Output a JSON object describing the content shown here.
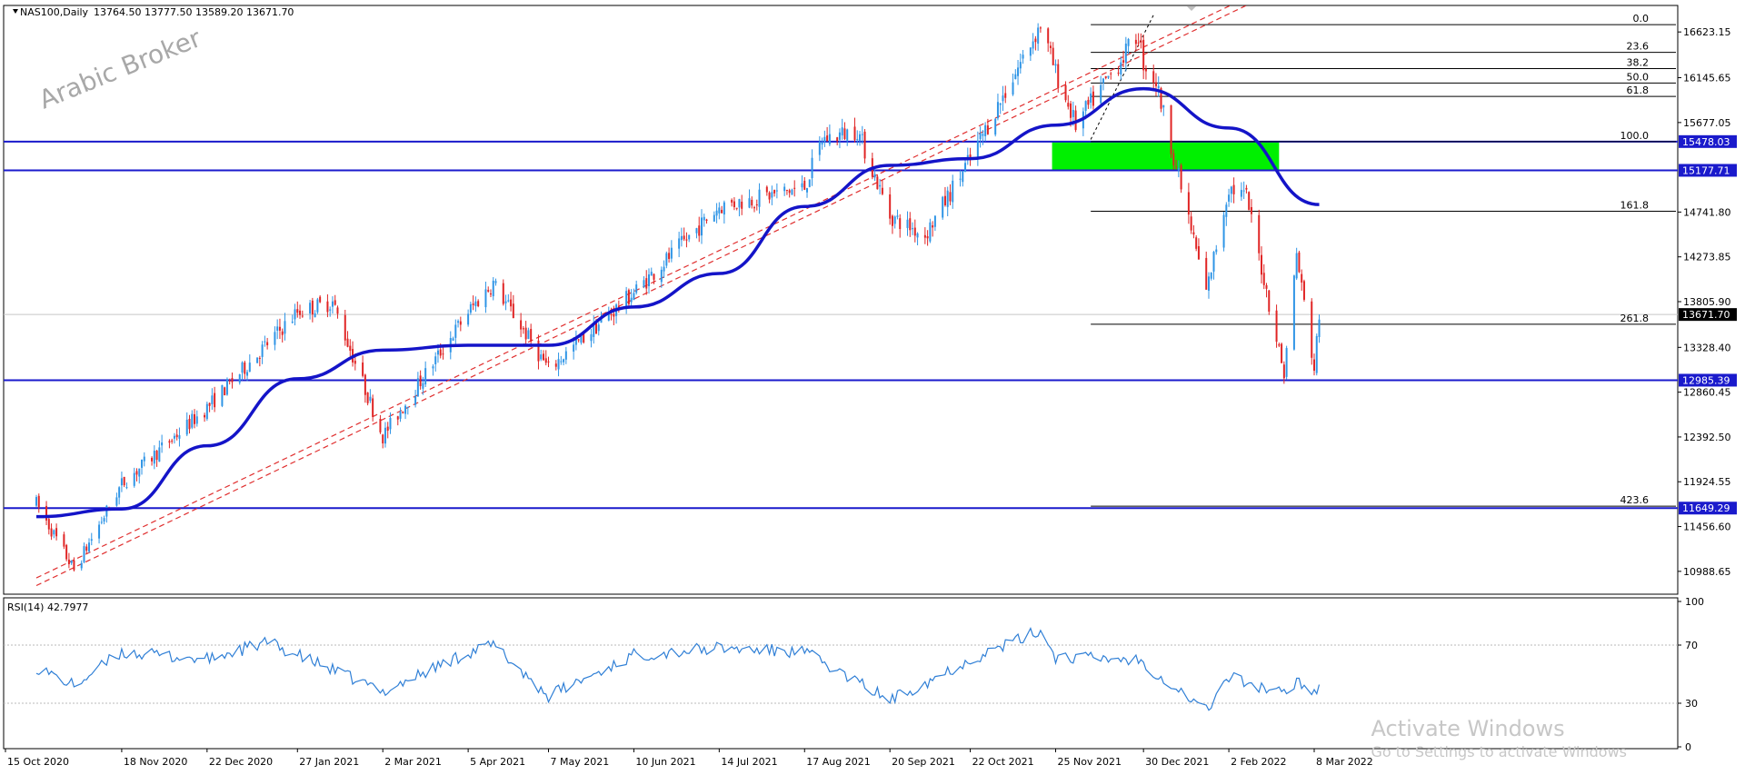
{
  "header": {
    "symbol": "NAS100,Daily",
    "ohlc": "13764.50 13777.50 13589.20 13671.70"
  },
  "watermark_logo": "Arabic Broker",
  "os_watermark": {
    "line1": "Activate Windows",
    "line2": "Go to Settings to activate Windows"
  },
  "colors": {
    "bull": "#2f95e6",
    "bear": "#e02525",
    "ma": "#1414c8",
    "hline": "#1a1acc",
    "trend": "#e03030",
    "fib": "#000000",
    "zone": "#00f000",
    "rsi": "#2f7fd6"
  },
  "chart_data": {
    "type": "candlestick",
    "instrument": "NAS100",
    "timeframe": "Daily",
    "ylim": [
      10750,
      16900
    ],
    "x_labels": [
      "15 Oct 2020",
      "18 Nov 2020",
      "22 Dec 2020",
      "27 Jan 2021",
      "2 Mar 2021",
      "5 Apr 2021",
      "7 May 2021",
      "10 Jun 2021",
      "14 Jul 2021",
      "17 Aug 2021",
      "20 Sep 2021",
      "22 Oct 2021",
      "25 Nov 2021",
      "30 Dec 2021",
      "2 Feb 2022",
      "8 Mar 2022"
    ],
    "y_ticks": [
      "16623.15",
      "16145.65",
      "15677.05",
      "14741.80",
      "14273.85",
      "13805.90",
      "13328.40",
      "12860.45",
      "12392.50",
      "11924.55",
      "11456.60",
      "10988.65"
    ],
    "price_key_points": [
      [
        "15 Oct 2020",
        11700
      ],
      [
        "30 Oct 2020",
        11000
      ],
      [
        "18 Nov 2020",
        11900
      ],
      [
        "22 Dec 2020",
        12700
      ],
      [
        "27 Jan 2021",
        13700
      ],
      [
        "10 Feb 2021",
        13800
      ],
      [
        "2 Mar 2021",
        12400
      ],
      [
        "5 Apr 2021",
        13700
      ],
      [
        "15 Apr 2021",
        14000
      ],
      [
        "7 May 2021",
        13100
      ],
      [
        "10 Jun 2021",
        13900
      ],
      [
        "14 Jul 2021",
        14800
      ],
      [
        "17 Aug 2021",
        15000
      ],
      [
        "24 Aug 2021",
        15500
      ],
      [
        "7 Sep 2021",
        15600
      ],
      [
        "20 Sep 2021",
        14700
      ],
      [
        "4 Oct 2021",
        14500
      ],
      [
        "22 Oct 2021",
        15300
      ],
      [
        "19 Nov 2021",
        16700
      ],
      [
        "25 Nov 2021",
        16200
      ],
      [
        "3 Dec 2021",
        15650
      ],
      [
        "28 Dec 2021",
        16600
      ],
      [
        "30 Dec 2021",
        16300
      ],
      [
        "4 Jan 2022",
        16100
      ],
      [
        "24 Jan 2022",
        13900
      ],
      [
        "2 Feb 2022",
        15000
      ],
      [
        "9 Feb 2022",
        14900
      ],
      [
        "24 Feb 2022",
        13050
      ],
      [
        "1 Mar 2022",
        14300
      ],
      [
        "8 Mar 2022",
        13100
      ],
      [
        "10 Mar 2022",
        13671.7
      ]
    ],
    "moving_average": {
      "name": "",
      "points": [
        [
          "15 Oct 2020",
          11560
        ],
        [
          "18 Nov 2020",
          11640
        ],
        [
          "22 Dec 2020",
          12300
        ],
        [
          "27 Jan 2021",
          13000
        ],
        [
          "2 Mar 2021",
          13300
        ],
        [
          "5 Apr 2021",
          13350
        ],
        [
          "7 May 2021",
          13350
        ],
        [
          "10 Jun 2021",
          13750
        ],
        [
          "14 Jul 2021",
          14100
        ],
        [
          "17 Aug 2021",
          14800
        ],
        [
          "20 Sep 2021",
          15230
        ],
        [
          "22 Oct 2021",
          15300
        ],
        [
          "25 Nov 2021",
          15650
        ],
        [
          "30 Dec 2021",
          16030
        ],
        [
          "2 Feb 2022",
          15620
        ],
        [
          "10 Mar 2022",
          14820
        ]
      ]
    },
    "horizontal_levels": [
      {
        "label": "15478.03",
        "value": 15478.03
      },
      {
        "label": "15177.71",
        "value": 15177.71
      },
      {
        "label": "12985.39",
        "value": 12985.39
      },
      {
        "label": "11649.29",
        "value": 11649.29
      }
    ],
    "current_price": {
      "label": "13671.70",
      "value": 13671.7
    },
    "supply_zone": {
      "from": "3 Dec 2021",
      "to": "22 Feb 2022",
      "low": 15177.71,
      "high": 15478.03
    },
    "fibonacci": {
      "from": "9 Dec 2021",
      "to": "10 Mar 2022",
      "levels": [
        {
          "label": "0.0",
          "value": 16700
        },
        {
          "label": "23.6",
          "value": 16410
        },
        {
          "label": "38.2",
          "value": 16240
        },
        {
          "label": "50.0",
          "value": 16090
        },
        {
          "label": "61.8",
          "value": 15950
        },
        {
          "label": "100.0",
          "value": 15478
        },
        {
          "label": "161.8",
          "value": 14750
        },
        {
          "label": "261.8",
          "value": 13570
        },
        {
          "label": "423.6",
          "value": 11670
        }
      ]
    },
    "trend_channel": [
      {
        "p1": [
          "15 Oct 2020",
          10840
        ],
        "p2": [
          "8 Mar 2022",
          17240
        ]
      },
      {
        "p1": [
          "15 Oct 2020",
          10920
        ],
        "p2": [
          "8 Mar 2022",
          17320
        ]
      }
    ],
    "fib_anchor_dashed": {
      "p1": [
        "9 Dec 2021",
        15500
      ],
      "p2": [
        "3 Jan 2022",
        16800
      ]
    },
    "rsi": {
      "label": "RSI(14) 42.7977",
      "ylim": [
        0,
        100
      ],
      "levels": [
        70,
        30
      ],
      "y_ticks": [
        "100",
        "70",
        "30",
        "0"
      ],
      "key_points": [
        [
          "15 Oct 2020",
          55
        ],
        [
          "30 Oct 2020",
          42
        ],
        [
          "18 Nov 2020",
          65
        ],
        [
          "22 Dec 2020",
          60
        ],
        [
          "15 Jan 2021",
          72
        ],
        [
          "2 Mar 2021",
          38
        ],
        [
          "5 Apr 2021",
          65
        ],
        [
          "15 Apr 2021",
          70
        ],
        [
          "7 May 2021",
          35
        ],
        [
          "10 Jun 2021",
          63
        ],
        [
          "14 Jul 2021",
          68
        ],
        [
          "17 Aug 2021",
          65
        ],
        [
          "20 Sep 2021",
          32
        ],
        [
          "22 Oct 2021",
          60
        ],
        [
          "19 Nov 2021",
          80
        ],
        [
          "25 Nov 2021",
          62
        ],
        [
          "28 Dec 2021",
          60
        ],
        [
          "24 Jan 2022",
          25
        ],
        [
          "2 Feb 2022",
          48
        ],
        [
          "24 Feb 2022",
          36
        ],
        [
          "1 Mar 2022",
          46
        ],
        [
          "8 Mar 2022",
          38
        ],
        [
          "10 Mar 2022",
          42.8
        ]
      ]
    }
  }
}
